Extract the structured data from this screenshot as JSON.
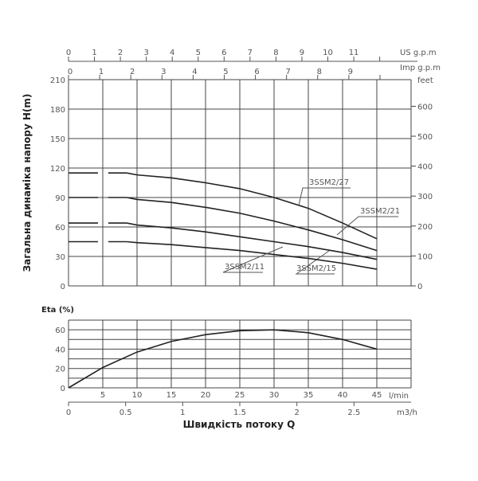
{
  "chart_data": [
    {
      "type": "line",
      "ylabel": "Загальна динаміка напору H(m)",
      "x_unit": "l/min",
      "ylim": [
        0,
        210
      ],
      "yticks": [
        0,
        30,
        60,
        90,
        120,
        150,
        180,
        210
      ],
      "right_axis": {
        "label": "feet",
        "ticks": [
          0,
          100,
          200,
          300,
          400,
          500,
          600
        ]
      },
      "top_axes": [
        {
          "label": "US g.p.m",
          "ticks": [
            0,
            1,
            2,
            3,
            4,
            5,
            6,
            7,
            8,
            9,
            10,
            11
          ]
        },
        {
          "label": "Imp g.p.m",
          "ticks": [
            0,
            1,
            2,
            3,
            4,
            5,
            6,
            7,
            8,
            9
          ]
        }
      ],
      "grid": true,
      "x": [
        0,
        5,
        10,
        15,
        20,
        25,
        30,
        35,
        40,
        45
      ],
      "series": [
        {
          "name": "3SSM2/27",
          "values": [
            115,
            115,
            113,
            110,
            105,
            99,
            90,
            79,
            64,
            48
          ]
        },
        {
          "name": "3SSM2/21",
          "values": [
            90,
            90,
            88,
            85,
            80,
            74,
            66,
            57,
            47,
            36
          ]
        },
        {
          "name": "3SSM2/15",
          "values": [
            64,
            64,
            62,
            59,
            55,
            50,
            45,
            40,
            34,
            27
          ]
        },
        {
          "name": "3SSM2/11",
          "values": [
            45,
            45,
            44,
            42,
            39,
            36,
            32,
            28,
            23,
            17
          ]
        }
      ]
    },
    {
      "type": "line",
      "ylabel": "Eta (%)",
      "xlabel": "Швидкість потоку Q",
      "ylim": [
        0,
        70
      ],
      "yticks": [
        0,
        20,
        40,
        60
      ],
      "xticks": [
        0,
        5,
        10,
        15,
        20,
        25,
        30,
        35,
        40,
        45
      ],
      "x_unit": "l/min",
      "secondary_x": {
        "label": "m3/h",
        "ticks": [
          "0",
          "0.5",
          "1",
          "1.5",
          "2",
          "2.5"
        ]
      },
      "grid": true,
      "x": [
        0,
        5,
        10,
        15,
        20,
        25,
        30,
        35,
        40,
        45
      ],
      "series": [
        {
          "values": [
            0,
            21,
            37,
            48,
            55,
            59,
            60,
            57,
            50,
            40
          ]
        }
      ]
    }
  ]
}
